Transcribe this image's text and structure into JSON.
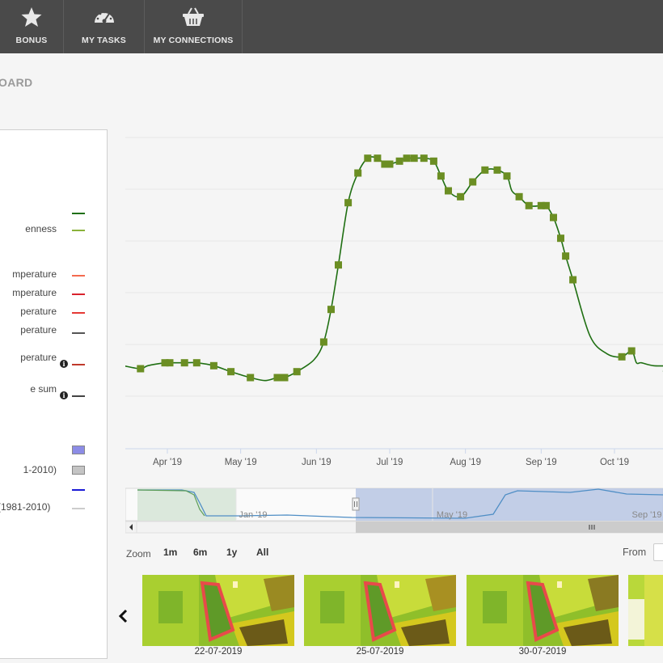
{
  "nav": {
    "items": [
      {
        "label": "BONUS",
        "icon": "star-icon"
      },
      {
        "label": "MY TASKS",
        "icon": "dashboard-gauge-icon"
      },
      {
        "label": "MY CONNECTIONS",
        "icon": "basket-icon"
      }
    ]
  },
  "page": {
    "title_visible": "OARD"
  },
  "legend": {
    "items": [
      {
        "text": "",
        "color": "#1f6f12",
        "type": "line"
      },
      {
        "text": "enness",
        "color": "#8ab23a",
        "type": "line"
      },
      {
        "text": "mperature",
        "color": "#f46a4e",
        "type": "line"
      },
      {
        "text": "mperature",
        "color": "#d9232d",
        "type": "line"
      },
      {
        "text": "perature",
        "color": "#e53935",
        "type": "line"
      },
      {
        "text": "perature",
        "color": "#555555",
        "type": "line"
      },
      {
        "text": "perature",
        "color": "#c0392b",
        "type": "line",
        "info": true
      },
      {
        "text": "e sum",
        "color": "#444444",
        "type": "line",
        "info": true
      },
      {
        "text": "",
        "color": "#8c8ce6",
        "type": "box"
      },
      {
        "text": "1-2010)",
        "color": "#c4c4c4",
        "type": "box"
      },
      {
        "text": "",
        "color": "#1a1ad6",
        "type": "line"
      },
      {
        "text": "(1981-2010)",
        "color": "#cccccc",
        "type": "line"
      }
    ]
  },
  "chart_data": {
    "type": "line",
    "x_ticks": [
      "Apr '19",
      "May '19",
      "Jun '19",
      "Jul '19",
      "Aug '19",
      "Sep '19",
      "Oct '19"
    ],
    "navigator_ticks": [
      "Jan '19",
      "May '19",
      "Sep '19"
    ],
    "series": [
      {
        "color": "#1f6f12",
        "marker_color": "#6b8e23",
        "x": [
          "2019-03-14",
          "2019-03-21",
          "2019-03-24",
          "2019-03-31",
          "2019-04-02",
          "2019-04-05",
          "2019-04-08",
          "2019-04-13",
          "2019-04-20",
          "2019-04-27",
          "2019-05-05",
          "2019-05-11",
          "2019-05-16",
          "2019-05-19",
          "2019-05-24",
          "2019-05-31",
          "2019-06-04",
          "2019-06-07",
          "2019-06-10",
          "2019-06-14",
          "2019-06-18",
          "2019-06-22",
          "2019-06-26",
          "2019-06-29",
          "2019-07-01",
          "2019-07-05",
          "2019-07-08",
          "2019-07-11",
          "2019-07-15",
          "2019-07-19",
          "2019-07-22",
          "2019-07-25",
          "2019-07-30",
          "2019-08-04",
          "2019-08-09",
          "2019-08-14",
          "2019-08-18",
          "2019-08-20",
          "2019-08-23",
          "2019-08-27",
          "2019-09-01",
          "2019-09-03",
          "2019-09-06",
          "2019-09-09",
          "2019-09-11",
          "2019-09-14",
          "2019-09-21",
          "2019-09-28",
          "2019-10-04",
          "2019-10-08",
          "2019-10-10",
          "2019-10-12",
          "2019-10-17",
          "2019-10-24"
        ],
        "values": [
          0.28,
          0.27,
          0.28,
          0.29,
          0.29,
          0.29,
          0.29,
          0.29,
          0.28,
          0.26,
          0.24,
          0.23,
          0.24,
          0.24,
          0.26,
          0.3,
          0.36,
          0.47,
          0.62,
          0.83,
          0.93,
          0.98,
          0.98,
          0.96,
          0.96,
          0.97,
          0.98,
          0.98,
          0.98,
          0.97,
          0.92,
          0.87,
          0.85,
          0.9,
          0.94,
          0.94,
          0.92,
          0.87,
          0.85,
          0.82,
          0.82,
          0.82,
          0.78,
          0.71,
          0.65,
          0.57,
          0.38,
          0.32,
          0.31,
          0.33,
          0.29,
          0.29,
          0.28,
          0.28
        ],
        "marker_indices": [
          1,
          3,
          4,
          6,
          7,
          8,
          9,
          10,
          12,
          13,
          14,
          16,
          17,
          18,
          19,
          20,
          21,
          22,
          23,
          24,
          25,
          26,
          27,
          28,
          29,
          30,
          31,
          32,
          33,
          34,
          35,
          36,
          38,
          39,
          40,
          41,
          42,
          43,
          44,
          45,
          48,
          49
        ],
        "y_range": [
          0.0,
          1.05
        ]
      },
      {
        "name": "",
        "color": "#4f8ec5",
        "role": "navigator"
      }
    ],
    "grid": true,
    "legend_position": "left"
  },
  "zoom": {
    "label": "Zoom",
    "options": [
      "1m",
      "6m",
      "1y",
      "All"
    ],
    "from_label": "From"
  },
  "thumbnails": [
    {
      "date": "22-07-2019"
    },
    {
      "date": "25-07-2019"
    },
    {
      "date": "30-07-2019"
    },
    {
      "date": ""
    }
  ]
}
